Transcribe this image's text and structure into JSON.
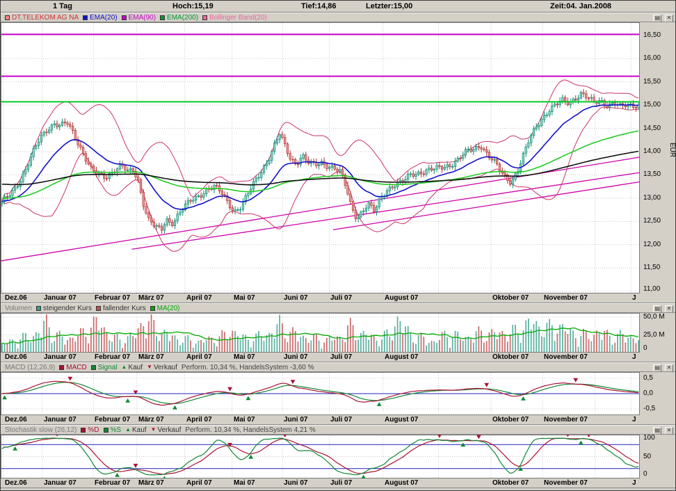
{
  "header": {
    "period": "1 Tag",
    "hoch": "Hoch:15,19",
    "tief": "Tief:14,86",
    "letzter": "Letzter:15,00",
    "zeit": "Zeit:04. Jan.2008"
  },
  "icons": {
    "settings_glyph": "▤",
    "close_glyph": "✕"
  },
  "axis": {
    "eur": "EUR",
    "months": [
      {
        "label": "Dez.06",
        "f": 0.004
      },
      {
        "label": "Januar 07",
        "f": 0.065
      },
      {
        "label": "Februar 07",
        "f": 0.145
      },
      {
        "label": "März 07",
        "f": 0.213
      },
      {
        "label": "April 07",
        "f": 0.288
      },
      {
        "label": "Mai 07",
        "f": 0.362
      },
      {
        "label": "Juni 07",
        "f": 0.441
      },
      {
        "label": "Juli 07",
        "f": 0.514
      },
      {
        "label": "August 07",
        "f": 0.598
      },
      {
        "label": "Oktober 07",
        "f": 0.767
      },
      {
        "label": "November 07",
        "f": 0.848
      },
      {
        "label": "J",
        "f": 0.986
      }
    ],
    "grid_extra": [
      0.685,
      0.93
    ],
    "price_ticks": [
      {
        "value": 16.5,
        "label": "16,50"
      },
      {
        "value": 16.0,
        "label": "16,00"
      },
      {
        "value": 15.5,
        "label": "15,50"
      },
      {
        "value": 15.0,
        "label": "15,00"
      },
      {
        "value": 14.5,
        "label": "14,50"
      },
      {
        "value": 14.0,
        "label": "14,00"
      },
      {
        "value": 13.5,
        "label": "13,50"
      },
      {
        "value": 13.0,
        "label": "13,00"
      },
      {
        "value": 12.5,
        "label": "12,50"
      },
      {
        "value": 12.0,
        "label": "12,00"
      },
      {
        "value": 11.5,
        "label": "11,50"
      },
      {
        "value": 11.0,
        "label": "11,00"
      }
    ],
    "volume_ticks": [
      {
        "value": 50,
        "label": "50,0 M"
      },
      {
        "value": 25,
        "label": "25,0 M"
      },
      {
        "value": 0,
        "label": "0"
      }
    ],
    "macd_ticks": [
      {
        "value": 0.5,
        "label": "0,5"
      },
      {
        "value": 0.0,
        "label": "0,0"
      },
      {
        "value": -0.5,
        "label": "-0,5"
      }
    ],
    "stoch_ticks": [
      {
        "value": 100,
        "label": "100"
      },
      {
        "value": 50,
        "label": "50"
      },
      {
        "value": 0,
        "label": "0"
      }
    ]
  },
  "legends": {
    "price": [
      {
        "icon": "square",
        "color": "#ef8585",
        "label": "DT.TELEKOM AG NA",
        "label_color": "#cc3333",
        "icon_name": "instrument-color-icon"
      },
      {
        "icon": "square",
        "color": "#1111cc",
        "label": "EMA(20)",
        "label_color": "#1111cc"
      },
      {
        "icon": "square",
        "color": "#cc00cc",
        "label": "EMA(90)",
        "label_color": "#cc00cc"
      },
      {
        "icon": "square",
        "color": "#009933",
        "label": "EMA(200)",
        "label_color": "#009933"
      },
      {
        "icon": "square",
        "color": "#ee6699",
        "label": "Bollinger Band(20)",
        "label_color": "#ee6699"
      }
    ],
    "volume": [
      {
        "icon": "none",
        "label": "Volumen",
        "label_color": "#7a7a7a"
      },
      {
        "icon": "square",
        "color": "#3a9d8c",
        "label": "steigender Kurs",
        "label_color": "#333333"
      },
      {
        "icon": "square",
        "color": "#c05050",
        "label": "fallender Kurs",
        "label_color": "#333333"
      },
      {
        "icon": "square",
        "color": "#00aa00",
        "label": "MA(20)",
        "label_color": "#00aa00"
      }
    ],
    "macd": [
      {
        "icon": "none",
        "label": "MACD (12,26,9)",
        "label_color": "#7a7a7a"
      },
      {
        "icon": "square",
        "color": "#aa1133",
        "label": "MACD",
        "label_color": "#aa1133"
      },
      {
        "icon": "square",
        "color": "#118833",
        "label": "Signal",
        "label_color": "#118833"
      },
      {
        "icon": "tri-up",
        "color": "#118833",
        "label": "Kauf",
        "label_color": "#333333"
      },
      {
        "icon": "tri-down",
        "color": "#aa1133",
        "label": "Verkauf",
        "label_color": "#333333"
      },
      {
        "icon": "none",
        "label": "Perform. 10,34 %, HandelsSystem -3,60 %",
        "label_color": "#444444"
      }
    ],
    "stoch": [
      {
        "icon": "none",
        "label": "Stochastik slow (26,12)",
        "label_color": "#7a7a7a"
      },
      {
        "icon": "square",
        "color": "#aa1133",
        "label": "%D",
        "label_color": "#aa1133"
      },
      {
        "icon": "square",
        "color": "#118833",
        "label": "%S",
        "label_color": "#118833"
      },
      {
        "icon": "tri-up",
        "color": "#118833",
        "label": "Kauf",
        "label_color": "#333333"
      },
      {
        "icon": "tri-down",
        "color": "#aa1133",
        "label": "Verkauf",
        "label_color": "#333333"
      },
      {
        "icon": "none",
        "label": "Perform. 10,34 %, HandelsSystem 4,21 %",
        "label_color": "#444444"
      }
    ]
  },
  "chart_data": {
    "type": "candlestick",
    "instrument": "DT.TELEKOM AG NA",
    "timeframe": "1 Tag",
    "currency": "EUR",
    "day_high": "15,19",
    "day_low": "14,86",
    "last": "15,00",
    "time": "04. Jan.2008",
    "x_range": [
      "Dez 2006",
      "Jan 2008"
    ],
    "ylim": [
      10.95,
      16.78
    ],
    "volume_max": 56,
    "macd_ylim": [
      -0.7,
      0.7
    ],
    "stoch_levels": [
      20,
      80
    ],
    "perform_macd": "10,34 %",
    "handelssystem_macd": "-3,60 %",
    "perform_stoch": "10,34 %",
    "handelssystem_stoch": "4,21 %",
    "colors": {
      "candle_up": "#0e8a74",
      "candle_up_fill": "#8fd4c5",
      "candle_down": "#b03030",
      "candle_down_fill": "#e89c9c",
      "vol_up": "#5fb3a3",
      "vol_down": "#cc7070",
      "vol_ma": "#00aa00",
      "macd_line": "#aa1133",
      "signal_line": "#118833",
      "stoch_d": "#aa1133",
      "stoch_s": "#118833",
      "buy": "#118833",
      "sell": "#aa1133",
      "zero_line": "#2222bb",
      "stoch_level_line": "#2222bb",
      "grid": "#c9c9c9"
    },
    "indicators": {
      "ema": [
        {
          "period": 20,
          "color": "#1111cc"
        },
        {
          "period": 90,
          "color": "#22cc22",
          "seed": 13.0
        },
        {
          "period": 200,
          "color": "#111111",
          "seed": 13.3
        }
      ],
      "bollinger": {
        "period": 20,
        "mult": 2,
        "color": "#cc3366"
      },
      "macd": {
        "fast": 12,
        "slow": 26,
        "signal": 9
      },
      "stoch": {
        "k_period": 26,
        "smoothing": 12
      }
    },
    "hlines": [
      {
        "price": 16.52,
        "color": "#cc00cc",
        "width": 2
      },
      {
        "price": 15.62,
        "color": "#cc00cc",
        "width": 2
      },
      {
        "price": 15.07,
        "color": "#00cc22",
        "width": 2
      }
    ],
    "trendlines": [
      {
        "x1": 0.0,
        "p1": 11.65,
        "x2": 1.0,
        "p2": 13.88,
        "color": "#cc00aa"
      },
      {
        "x1": 0.205,
        "p1": 11.9,
        "x2": 1.0,
        "p2": 13.55,
        "color": "#cc00aa"
      },
      {
        "x1": 0.52,
        "p1": 12.32,
        "x2": 1.0,
        "p2": 13.35,
        "color": "#cc00aa"
      }
    ],
    "close_anchors": [
      [
        0.0,
        12.9
      ],
      [
        0.01,
        13.05
      ],
      [
        0.022,
        13.25
      ],
      [
        0.035,
        13.55
      ],
      [
        0.048,
        13.95
      ],
      [
        0.06,
        14.3
      ],
      [
        0.072,
        14.5
      ],
      [
        0.082,
        14.6
      ],
      [
        0.092,
        14.55
      ],
      [
        0.102,
        14.62
      ],
      [
        0.112,
        14.4
      ],
      [
        0.12,
        14.18
      ],
      [
        0.13,
        13.9
      ],
      [
        0.14,
        13.62
      ],
      [
        0.15,
        13.5
      ],
      [
        0.163,
        13.45
      ],
      [
        0.175,
        13.6
      ],
      [
        0.188,
        13.7
      ],
      [
        0.198,
        13.55
      ],
      [
        0.206,
        13.6
      ],
      [
        0.214,
        13.38
      ],
      [
        0.222,
        12.9
      ],
      [
        0.23,
        12.55
      ],
      [
        0.24,
        12.4
      ],
      [
        0.25,
        12.28
      ],
      [
        0.258,
        12.55
      ],
      [
        0.266,
        12.45
      ],
      [
        0.274,
        12.6
      ],
      [
        0.285,
        12.8
      ],
      [
        0.298,
        12.95
      ],
      [
        0.31,
        13.05
      ],
      [
        0.322,
        13.2
      ],
      [
        0.334,
        13.25
      ],
      [
        0.345,
        13.1
      ],
      [
        0.355,
        12.9
      ],
      [
        0.365,
        12.72
      ],
      [
        0.375,
        12.82
      ],
      [
        0.385,
        13.05
      ],
      [
        0.395,
        13.3
      ],
      [
        0.406,
        13.55
      ],
      [
        0.417,
        13.8
      ],
      [
        0.427,
        14.1
      ],
      [
        0.436,
        14.38
      ],
      [
        0.445,
        14.1
      ],
      [
        0.453,
        13.85
      ],
      [
        0.462,
        13.75
      ],
      [
        0.472,
        13.92
      ],
      [
        0.482,
        13.75
      ],
      [
        0.492,
        13.7
      ],
      [
        0.502,
        13.76
      ],
      [
        0.512,
        13.7
      ],
      [
        0.522,
        13.65
      ],
      [
        0.532,
        13.55
      ],
      [
        0.54,
        13.25
      ],
      [
        0.548,
        12.85
      ],
      [
        0.557,
        12.58
      ],
      [
        0.566,
        12.72
      ],
      [
        0.575,
        12.88
      ],
      [
        0.585,
        12.7
      ],
      [
        0.595,
        13.0
      ],
      [
        0.606,
        13.2
      ],
      [
        0.618,
        13.3
      ],
      [
        0.63,
        13.35
      ],
      [
        0.642,
        13.5
      ],
      [
        0.655,
        13.55
      ],
      [
        0.668,
        13.6
      ],
      [
        0.68,
        13.62
      ],
      [
        0.692,
        13.66
      ],
      [
        0.705,
        13.72
      ],
      [
        0.718,
        13.85
      ],
      [
        0.73,
        14.0
      ],
      [
        0.742,
        14.05
      ],
      [
        0.752,
        14.15
      ],
      [
        0.762,
        13.95
      ],
      [
        0.772,
        13.8
      ],
      [
        0.782,
        13.6
      ],
      [
        0.792,
        13.42
      ],
      [
        0.8,
        13.35
      ],
      [
        0.81,
        13.6
      ],
      [
        0.82,
        13.95
      ],
      [
        0.83,
        14.3
      ],
      [
        0.84,
        14.55
      ],
      [
        0.85,
        14.75
      ],
      [
        0.86,
        14.9
      ],
      [
        0.87,
        15.0
      ],
      [
        0.88,
        15.1
      ],
      [
        0.89,
        15.05
      ],
      [
        0.9,
        15.15
      ],
      [
        0.91,
        15.25
      ],
      [
        0.92,
        15.15
      ],
      [
        0.93,
        15.05
      ],
      [
        0.94,
        15.1
      ],
      [
        0.952,
        15.0
      ],
      [
        0.962,
        15.05
      ],
      [
        0.972,
        14.95
      ],
      [
        0.982,
        15.0
      ],
      [
        1.0,
        15.0
      ]
    ],
    "volume_anchors": [
      [
        0.0,
        12
      ],
      [
        0.02,
        18
      ],
      [
        0.04,
        22
      ],
      [
        0.06,
        30
      ],
      [
        0.07,
        46
      ],
      [
        0.08,
        26
      ],
      [
        0.1,
        20
      ],
      [
        0.12,
        24
      ],
      [
        0.14,
        38
      ],
      [
        0.155,
        44
      ],
      [
        0.17,
        22
      ],
      [
        0.19,
        18
      ],
      [
        0.21,
        26
      ],
      [
        0.222,
        48
      ],
      [
        0.235,
        40
      ],
      [
        0.25,
        30
      ],
      [
        0.27,
        22
      ],
      [
        0.29,
        18
      ],
      [
        0.31,
        16
      ],
      [
        0.33,
        20
      ],
      [
        0.35,
        24
      ],
      [
        0.36,
        34
      ],
      [
        0.38,
        20
      ],
      [
        0.4,
        22
      ],
      [
        0.42,
        28
      ],
      [
        0.436,
        40
      ],
      [
        0.45,
        30
      ],
      [
        0.47,
        24
      ],
      [
        0.49,
        20
      ],
      [
        0.51,
        18
      ],
      [
        0.53,
        22
      ],
      [
        0.545,
        36
      ],
      [
        0.56,
        30
      ],
      [
        0.575,
        24
      ],
      [
        0.59,
        20
      ],
      [
        0.61,
        26
      ],
      [
        0.62,
        50
      ],
      [
        0.64,
        28
      ],
      [
        0.66,
        20
      ],
      [
        0.68,
        16
      ],
      [
        0.7,
        28
      ],
      [
        0.72,
        22
      ],
      [
        0.74,
        24
      ],
      [
        0.755,
        30
      ],
      [
        0.77,
        26
      ],
      [
        0.785,
        30
      ],
      [
        0.8,
        28
      ],
      [
        0.815,
        34
      ],
      [
        0.83,
        44
      ],
      [
        0.845,
        38
      ],
      [
        0.86,
        34
      ],
      [
        0.875,
        40
      ],
      [
        0.89,
        30
      ],
      [
        0.905,
        26
      ],
      [
        0.92,
        24
      ],
      [
        0.935,
        30
      ],
      [
        0.95,
        26
      ],
      [
        0.965,
        22
      ],
      [
        0.98,
        26
      ],
      [
        1.0,
        18
      ]
    ]
  }
}
